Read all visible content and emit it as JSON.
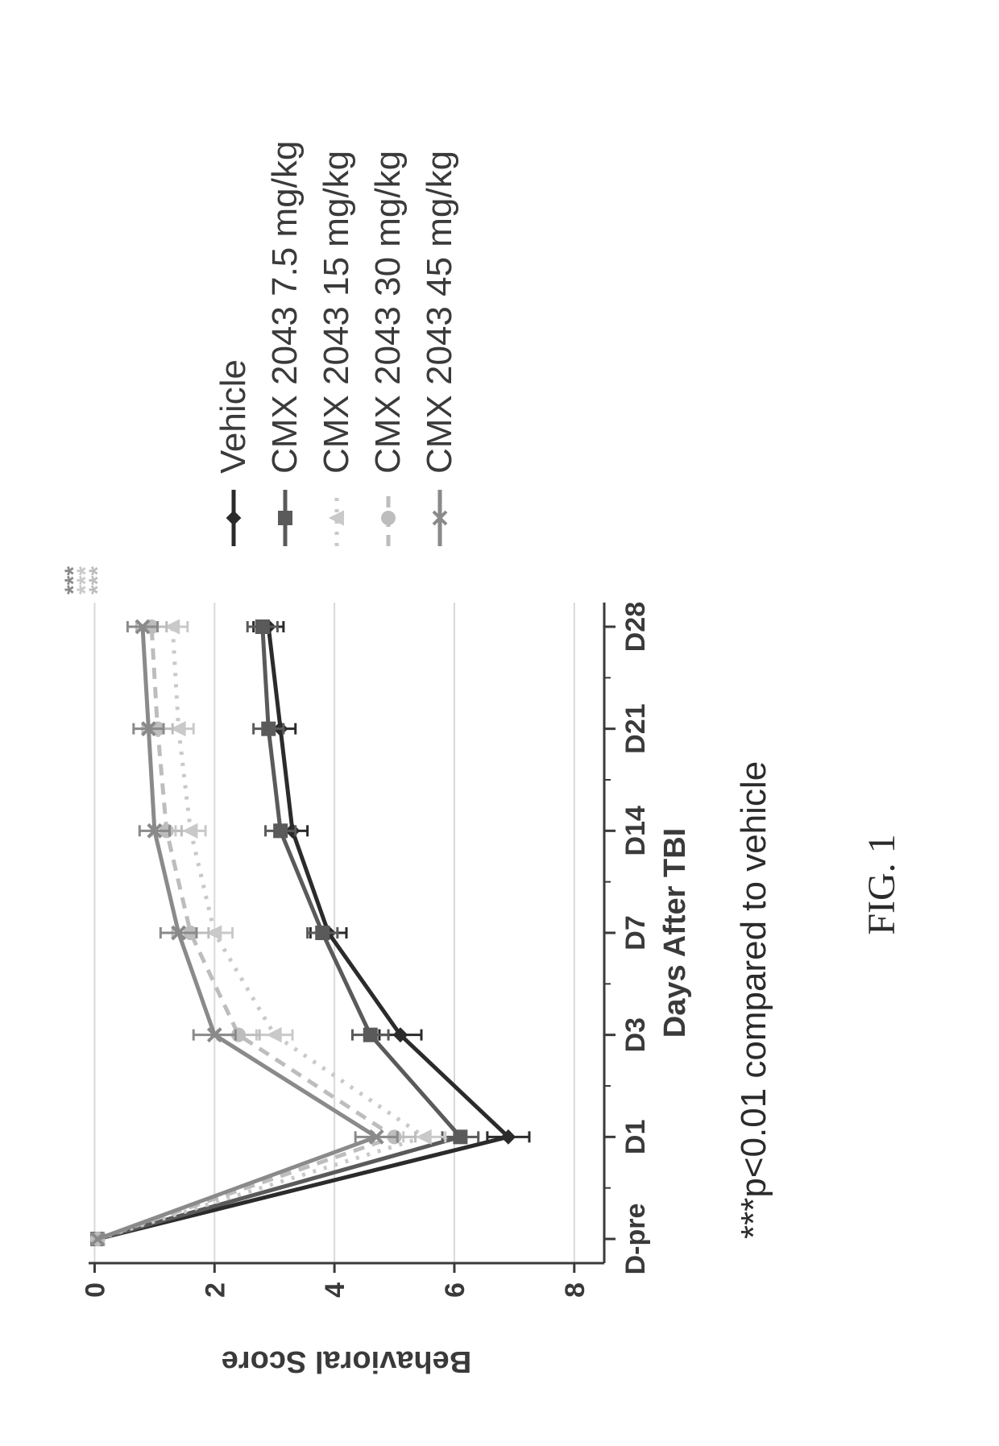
{
  "figure_caption": "FIG. 1",
  "significance_note": "***p<0.01 compared to vehicle",
  "chart": {
    "type": "line",
    "background_color": "#ffffff",
    "plot_background_color": "#ffffff",
    "grid_color": "#d9d9d9",
    "axis_color": "#3a3a3a",
    "tick_fontsize": 34,
    "axis_label_fontsize": 38,
    "legend_fontsize": 44,
    "caption_fontsize": 48,
    "sig_note_fontsize": 44,
    "line_width": 5,
    "marker_size": 8,
    "error_cap_width": 14,
    "x_label": "Days After TBI",
    "y_label": "Behavioral Score",
    "x_categories": [
      "D-pre",
      "D1",
      "D3",
      "D7",
      "D14",
      "D21",
      "D28"
    ],
    "ylim": [
      -0.1,
      8.5
    ],
    "y_ticks": [
      0,
      2,
      4,
      6,
      8
    ],
    "grid_y": [
      0,
      2,
      4,
      6,
      8
    ],
    "series": [
      {
        "name": "Vehicle",
        "color": "#2b2b2b",
        "marker": "diamond",
        "dash": "none",
        "y": [
          0.05,
          6.9,
          5.1,
          3.9,
          3.3,
          3.1,
          2.9
        ],
        "err": [
          0.0,
          0.35,
          0.35,
          0.3,
          0.25,
          0.25,
          0.25
        ]
      },
      {
        "name": "CMX 2043 7.5 mg/kg",
        "color": "#5a5a5a",
        "marker": "square",
        "dash": "none",
        "y": [
          0.05,
          6.1,
          4.6,
          3.8,
          3.1,
          2.9,
          2.8
        ],
        "err": [
          0.0,
          0.3,
          0.3,
          0.25,
          0.25,
          0.25,
          0.25
        ]
      },
      {
        "name": "CMX 2043 15 mg/kg",
        "color": "#c9c9c9",
        "marker": "triangle",
        "dash": "dotted",
        "y": [
          0.05,
          5.5,
          3.0,
          2.0,
          1.6,
          1.4,
          1.3
        ],
        "err": [
          0.0,
          0.35,
          0.3,
          0.3,
          0.25,
          0.25,
          0.25
        ]
      },
      {
        "name": "CMX 2043 30 mg/kg",
        "color": "#bdbdbd",
        "marker": "circle",
        "dash": "dashed",
        "y": [
          0.05,
          5.0,
          2.4,
          1.6,
          1.2,
          1.05,
          0.95
        ],
        "err": [
          0.0,
          0.35,
          0.35,
          0.3,
          0.25,
          0.25,
          0.25
        ]
      },
      {
        "name": "CMX 2043 45 mg/kg",
        "color": "#8a8a8a",
        "marker": "x",
        "dash": "none",
        "y": [
          0.05,
          4.7,
          2.0,
          1.4,
          1.0,
          0.9,
          0.8
        ],
        "err": [
          0.0,
          0.35,
          0.35,
          0.3,
          0.25,
          0.25,
          0.25
        ]
      }
    ],
    "significance_marks": [
      {
        "text": "***",
        "color": "#bdbdbd",
        "y_above": 0.45,
        "fontsize": 30
      },
      {
        "text": "***",
        "color": "#c9c9c9",
        "y_above": 0.25,
        "fontsize": 30
      },
      {
        "text": "***",
        "color": "#8a8a8a",
        "y_above": 0.05,
        "fontsize": 30
      }
    ]
  }
}
